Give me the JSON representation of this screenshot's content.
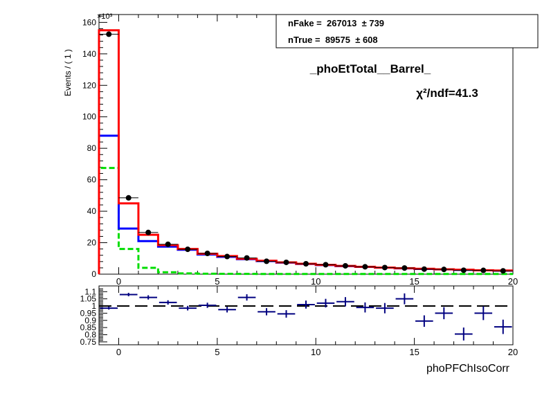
{
  "top_panel": {
    "ylabel": "Events / ( 1 )",
    "exponent": "×10³",
    "title": "_phoEtTotal__Barrel_",
    "chi2_label": "χ²/ndf=41.3",
    "stats": {
      "line1": "nFake =  267013  ± 739",
      "line2": "nTrue =  89575  ± 608"
    }
  },
  "bottom_panel": {
    "xlabel": "phoPFChIsoCorr"
  },
  "colors": {
    "total": "#ff0000",
    "fake": "#0000ff",
    "true": "#00dd00",
    "data": "#000000",
    "ratio": "#000080"
  },
  "chart_data": [
    {
      "type": "line",
      "name": "main",
      "x_edges": [
        -1,
        0,
        1,
        2,
        3,
        4,
        5,
        6,
        7,
        8,
        9,
        10,
        11,
        12,
        13,
        14,
        15,
        16,
        17,
        18,
        19,
        20
      ],
      "xlim": [
        -1,
        20
      ],
      "ylim": [
        0,
        165
      ],
      "y_unit_multiplier": 1000,
      "xticks": [
        0,
        5,
        10,
        15,
        20
      ],
      "yticks": [
        0,
        20,
        40,
        60,
        80,
        100,
        120,
        140,
        160
      ],
      "series": [
        {
          "key": "total",
          "values": [
            155,
            45,
            25,
            18.5,
            16,
            13,
            11.5,
            9.8,
            8.5,
            7.5,
            6.6,
            5.9,
            5.2,
            4.7,
            4.2,
            3.8,
            3.4,
            3.1,
            2.8,
            2.5,
            2.3
          ]
        },
        {
          "key": "fake",
          "values": [
            88,
            29,
            21,
            17.5,
            15.5,
            12.5,
            11,
            9.5,
            8.3,
            7.3,
            6.5,
            5.8,
            5.1,
            4.6,
            4.1,
            3.7,
            3.3,
            3.0,
            2.7,
            2.4,
            2.2
          ]
        },
        {
          "key": "true",
          "values": [
            67.5,
            16,
            4,
            1.2,
            0.5,
            0.3,
            0.2,
            0.15,
            0.1,
            0.1,
            0.1,
            0.1,
            0.1,
            0.1,
            0.1,
            0.1,
            0.1,
            0.1,
            0.1,
            0.1,
            0.1
          ]
        }
      ],
      "points": [
        {
          "x": -0.5,
          "y": 152.5
        },
        {
          "x": 0.5,
          "y": 48.5
        },
        {
          "x": 1.5,
          "y": 26.5
        },
        {
          "x": 2.5,
          "y": 19
        },
        {
          "x": 3.5,
          "y": 15.8
        },
        {
          "x": 4.5,
          "y": 13.2
        },
        {
          "x": 5.5,
          "y": 11.2
        },
        {
          "x": 6.5,
          "y": 10.3
        },
        {
          "x": 7.5,
          "y": 8.2
        },
        {
          "x": 8.5,
          "y": 7.5
        },
        {
          "x": 9.5,
          "y": 6.6
        },
        {
          "x": 10.5,
          "y": 6.0
        },
        {
          "x": 11.5,
          "y": 5.3
        },
        {
          "x": 12.5,
          "y": 4.7
        },
        {
          "x": 13.5,
          "y": 4.2
        },
        {
          "x": 14.5,
          "y": 3.9
        },
        {
          "x": 15.5,
          "y": 3.2
        },
        {
          "x": 16.5,
          "y": 3.0
        },
        {
          "x": 17.5,
          "y": 2.5
        },
        {
          "x": 18.5,
          "y": 2.4
        },
        {
          "x": 19.5,
          "y": 2.1
        }
      ]
    },
    {
      "type": "scatter",
      "name": "ratio",
      "xlim": [
        -1,
        20
      ],
      "ylim": [
        0.73,
        1.14
      ],
      "xticks": [
        0,
        5,
        10,
        15,
        20
      ],
      "yticks": [
        0.75,
        0.8,
        0.85,
        0.9,
        0.95,
        1,
        1.05,
        1.1
      ],
      "ytick_labels": [
        "0.75",
        "0.8",
        "0.85",
        "0.9",
        "0.95",
        "1",
        "1.05",
        "1.1"
      ],
      "reference": 1,
      "points": [
        {
          "x": -0.5,
          "y": 0.985,
          "err": 0.01
        },
        {
          "x": 0.5,
          "y": 1.08,
          "err": 0.012
        },
        {
          "x": 1.5,
          "y": 1.06,
          "err": 0.015
        },
        {
          "x": 2.5,
          "y": 1.025,
          "err": 0.015
        },
        {
          "x": 3.5,
          "y": 0.985,
          "err": 0.016
        },
        {
          "x": 4.5,
          "y": 1.005,
          "err": 0.018
        },
        {
          "x": 5.5,
          "y": 0.975,
          "err": 0.02
        },
        {
          "x": 6.5,
          "y": 1.06,
          "err": 0.022
        },
        {
          "x": 7.5,
          "y": 0.96,
          "err": 0.025
        },
        {
          "x": 8.5,
          "y": 0.945,
          "err": 0.026
        },
        {
          "x": 9.5,
          "y": 1.01,
          "err": 0.028
        },
        {
          "x": 10.5,
          "y": 1.02,
          "err": 0.03
        },
        {
          "x": 11.5,
          "y": 1.03,
          "err": 0.032
        },
        {
          "x": 12.5,
          "y": 0.99,
          "err": 0.035
        },
        {
          "x": 13.5,
          "y": 0.985,
          "err": 0.036
        },
        {
          "x": 14.5,
          "y": 1.05,
          "err": 0.038
        },
        {
          "x": 15.5,
          "y": 0.895,
          "err": 0.04
        },
        {
          "x": 16.5,
          "y": 0.95,
          "err": 0.042
        },
        {
          "x": 17.5,
          "y": 0.805,
          "err": 0.045
        },
        {
          "x": 18.5,
          "y": 0.95,
          "err": 0.048
        },
        {
          "x": 19.5,
          "y": 0.855,
          "err": 0.05
        }
      ]
    }
  ]
}
